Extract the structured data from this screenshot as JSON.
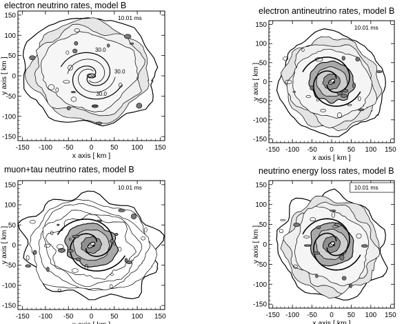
{
  "chart_data": [
    {
      "type": "heatmap",
      "title": "electron neutrino rates, model B",
      "xlabel": "x axis [ km ]",
      "ylabel": "y axis [ km ]",
      "xlim": [
        -160,
        160
      ],
      "ylim": [
        -160,
        160
      ],
      "x_ticks": [
        -150,
        -100,
        -50,
        0,
        50,
        100,
        150
      ],
      "y_ticks": [
        -150,
        -100,
        -50,
        0,
        50,
        100,
        150
      ],
      "timestamp": "10.01 ms",
      "contour_labels": [
        {
          "text": "30.0",
          "x": 20,
          "y": 60
        },
        {
          "text": "30.0",
          "x": 62,
          "y": 6
        },
        {
          "text": "30.0",
          "x": 22,
          "y": -49
        }
      ],
      "grid": false
    },
    {
      "type": "heatmap",
      "title": "electron antineutrino rates, model B",
      "xlabel": "x axis [ km ]",
      "ylabel": "y axis [ km ]",
      "xlim": [
        -160,
        160
      ],
      "ylim": [
        -160,
        160
      ],
      "x_ticks": [
        -150,
        -100,
        -50,
        0,
        50,
        100,
        150
      ],
      "y_ticks": [
        -150,
        -100,
        -50,
        0,
        50,
        100,
        150
      ],
      "timestamp": "10.01 ms",
      "contour_labels": [],
      "grid": false
    },
    {
      "type": "heatmap",
      "title": "muon+tau neutrino rates, model B",
      "xlabel": "x axis [ km ]",
      "ylabel": "y axis [ km ]",
      "xlim": [
        -160,
        160
      ],
      "ylim": [
        -160,
        160
      ],
      "x_ticks": [
        -150,
        -100,
        -50,
        0,
        50,
        100,
        150
      ],
      "y_ticks": [
        -150,
        -100,
        -50,
        0,
        50,
        100,
        150
      ],
      "timestamp": "10.01 ms",
      "contour_labels": [],
      "grid": false
    },
    {
      "type": "heatmap",
      "title": "neutrino energy loss rates, model B",
      "xlabel": "x axis [ km ]",
      "ylabel": "y axis [ km ]",
      "xlim": [
        -160,
        160
      ],
      "ylim": [
        -160,
        160
      ],
      "x_ticks": [
        -150,
        -100,
        -50,
        0,
        50,
        100,
        150
      ],
      "y_ticks": [
        -150,
        -100,
        -50,
        0,
        50,
        100,
        150
      ],
      "timestamp": "10.01 ms",
      "timestamp_boxed": true,
      "contour_labels": [],
      "grid": false
    }
  ]
}
